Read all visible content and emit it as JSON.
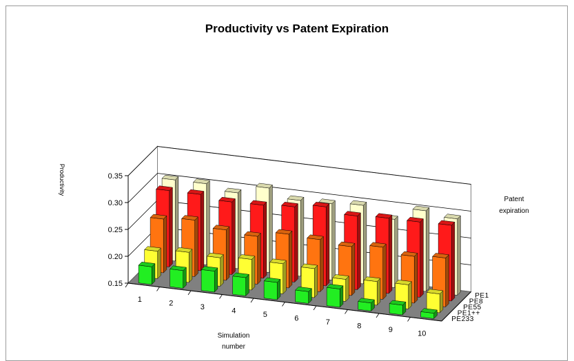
{
  "chart_data": {
    "type": "bar",
    "style": "3d-column",
    "title": "Productivity vs Patent Expiration",
    "xlabel": "Simulation number",
    "ylabel": "Productivity",
    "zlabel": "Patent expiration",
    "categories": [
      "1",
      "2",
      "3",
      "4",
      "5",
      "6",
      "7",
      "8",
      "9",
      "10"
    ],
    "ylim": [
      0.15,
      0.35
    ],
    "yticks": [
      "0.35",
      "0.30",
      "0.25",
      "0.20",
      "0.15"
    ],
    "grid": true,
    "legend": "none",
    "series": [
      {
        "name": "PE1",
        "color": "#ffffcc",
        "values": [
          0.301,
          0.301,
          0.291,
          0.307,
          0.291,
          0.292,
          0.296,
          0.277,
          0.3,
          0.292
        ]
      },
      {
        "name": "PE8",
        "color": "#ff1a1a",
        "values": [
          0.292,
          0.292,
          0.285,
          0.286,
          0.29,
          0.297,
          0.287,
          0.29,
          0.29,
          0.291
        ]
      },
      {
        "name": "PE55",
        "color": "#ff7410",
        "values": [
          0.25,
          0.255,
          0.244,
          0.239,
          0.25,
          0.247,
          0.241,
          0.247,
          0.237,
          0.241
        ]
      },
      {
        "name": "PE1++",
        "color": "#ffff33",
        "values": [
          0.201,
          0.206,
          0.203,
          0.207,
          0.206,
          0.204,
          0.191,
          0.194,
          0.195,
          0.185
        ]
      },
      {
        "name": "PE233",
        "color": "#22ee22",
        "values": [
          0.183,
          0.183,
          0.189,
          0.184,
          0.182,
          0.172,
          0.184,
          0.165,
          0.168,
          0.16
        ]
      }
    ]
  }
}
